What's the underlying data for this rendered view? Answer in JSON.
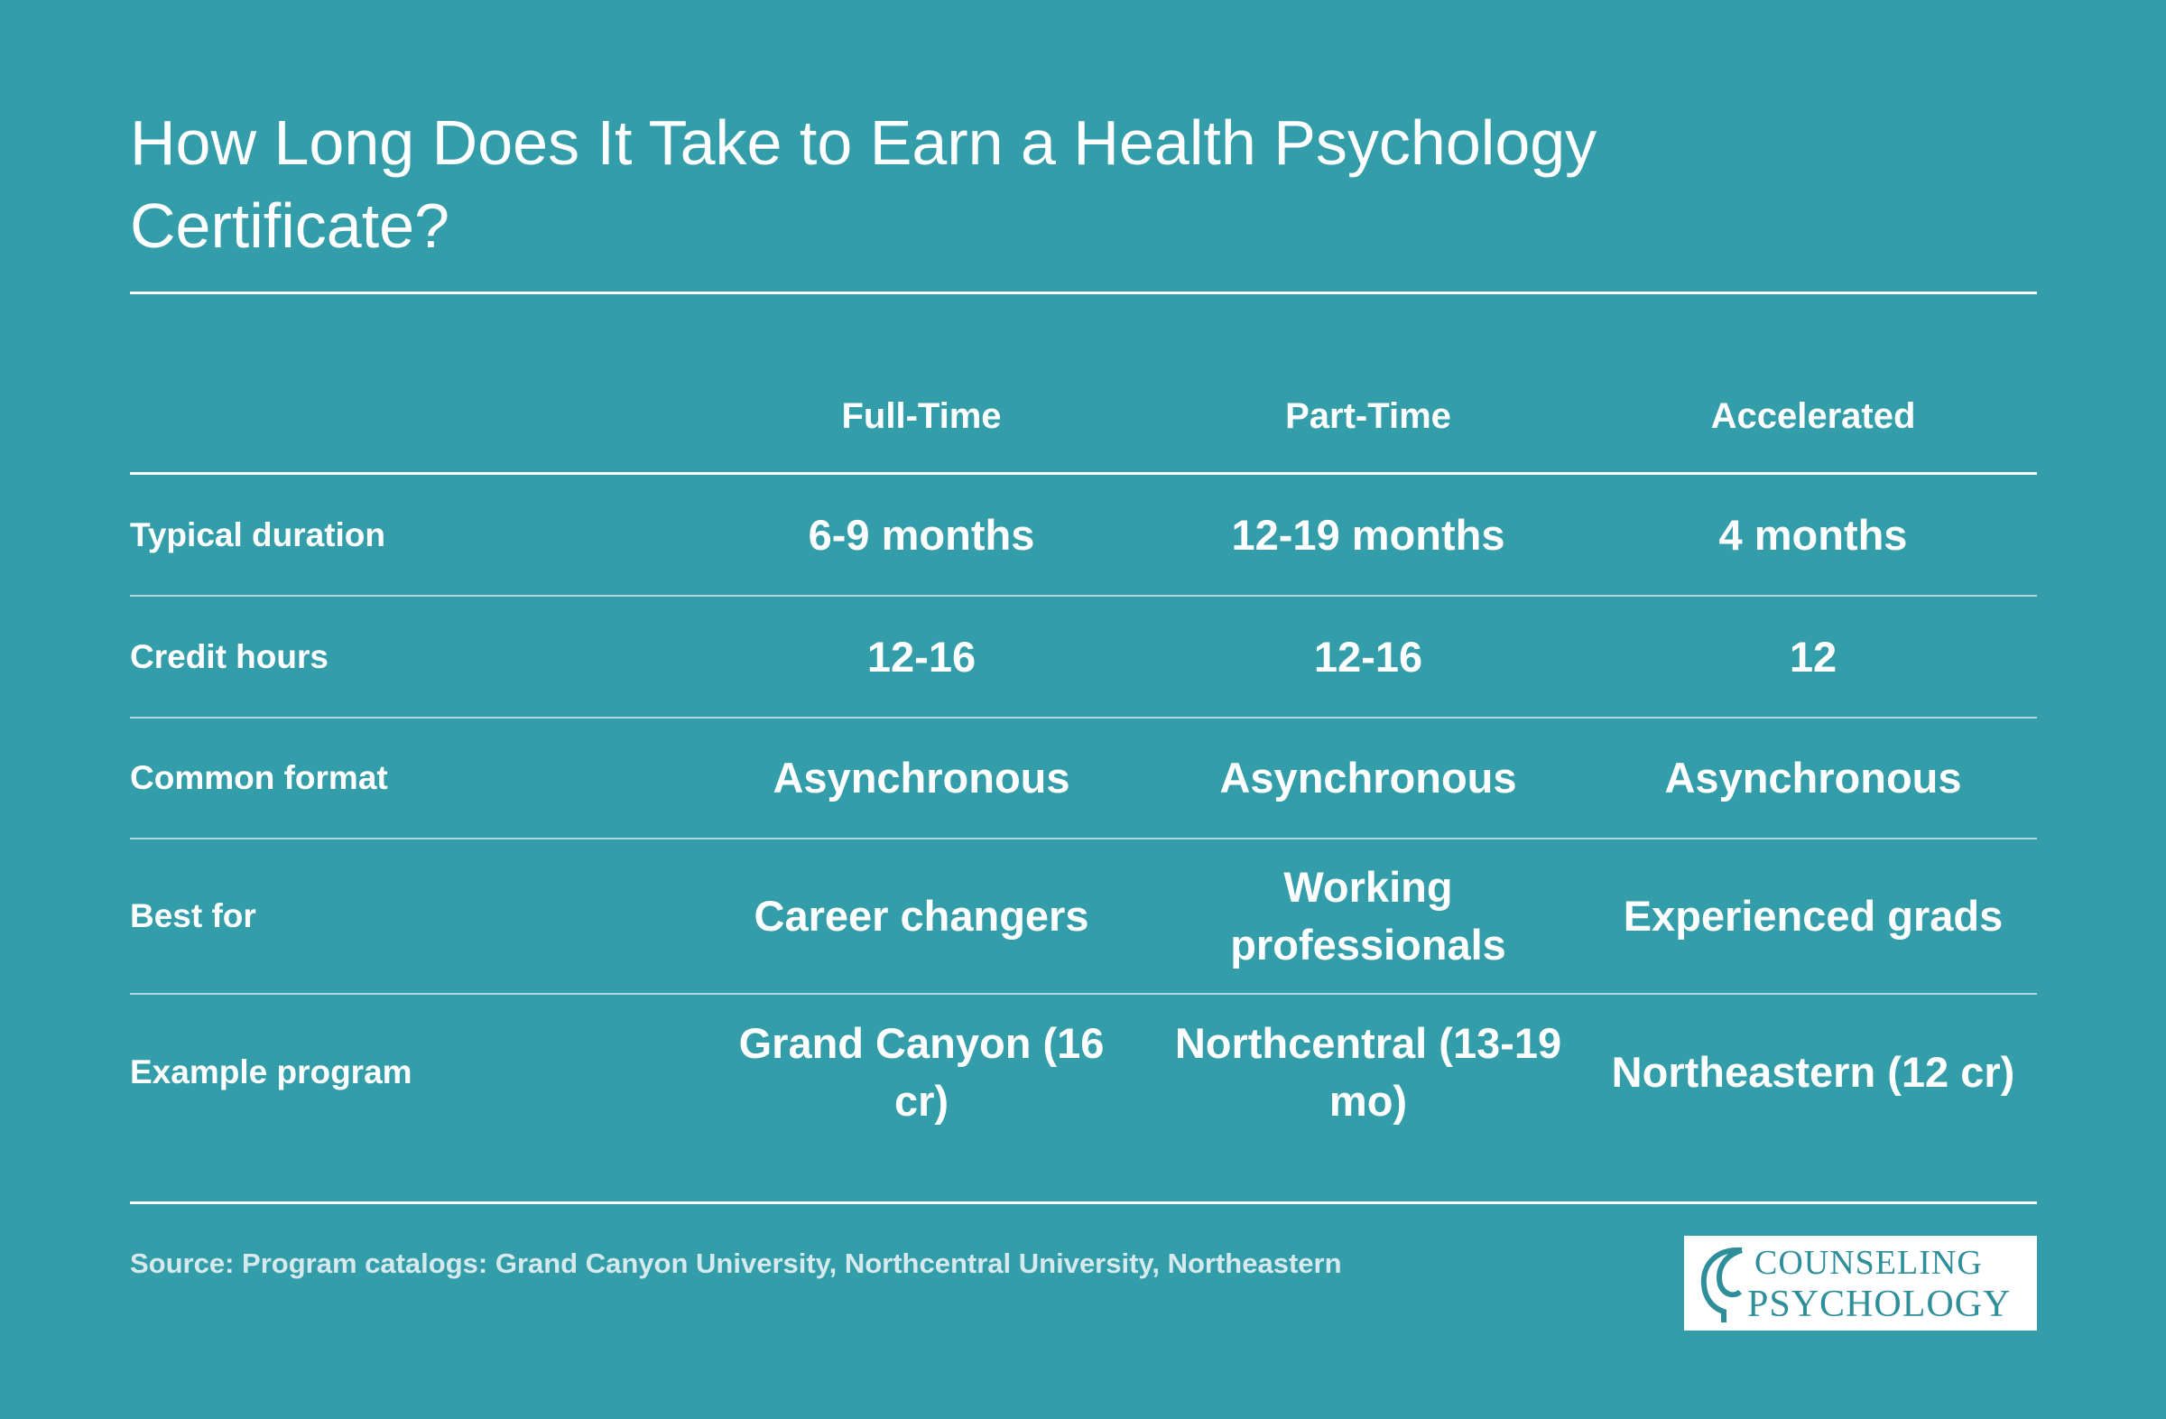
{
  "header": {
    "title": "How Long Does It Take to Earn a Health Psychology Certificate?"
  },
  "table": {
    "columns": [
      "Full-Time",
      "Part-Time",
      "Accelerated"
    ],
    "rows": [
      {
        "label": "Typical duration",
        "cells": [
          "6-9 months",
          "12-19 months",
          "4 months"
        ]
      },
      {
        "label": "Credit hours",
        "cells": [
          "12-16",
          "12-16",
          "12"
        ]
      },
      {
        "label": "Common format",
        "cells": [
          "Asynchronous",
          "Asynchronous",
          "Asynchronous"
        ]
      },
      {
        "label": "Best for",
        "cells": [
          "Career changers",
          "Working professionals",
          "Experienced grads"
        ]
      },
      {
        "label": "Example program",
        "cells": [
          "Grand Canyon (16 cr)",
          "Northcentral (13-19 mo)",
          "Northeastern (12 cr)"
        ]
      }
    ]
  },
  "footer": {
    "source": "Source: Program catalogs: Grand Canyon University, Northcentral University, Northeastern",
    "logo": {
      "line1": "COUNSELING",
      "line2": "PSYCHOLOGY"
    }
  }
}
